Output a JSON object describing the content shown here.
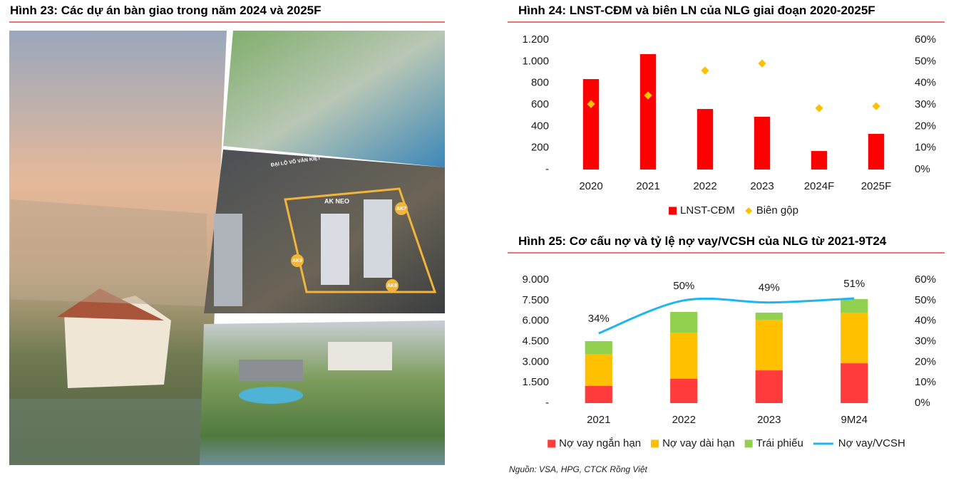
{
  "figure_23": {
    "title": "Hình 23: Các dự án bàn giao trong năm 2024 và 2025F",
    "image_labels": [
      "ĐẠI LỘ VÕ VĂN KIỆT",
      "AK NEO",
      "AK7",
      "AK9",
      "AK8"
    ]
  },
  "chart_data": [
    {
      "type": "bar",
      "title": "Hình 24: LNST-CĐM và biên LN của NLG giai đoạn 2020-2025F",
      "categories": [
        "2020",
        "2021",
        "2022",
        "2023",
        "2024F",
        "2025F"
      ],
      "series": [
        {
          "name": "LNST-CĐM",
          "color": "#ff0000",
          "type": "bar",
          "values": [
            837,
            1068,
            560,
            488,
            171,
            330
          ]
        },
        {
          "name": "Biên gộp",
          "color": "#ffc000",
          "type": "scatter",
          "axis": "y2",
          "values": [
            30.3,
            34.3,
            45.8,
            49.1,
            28.4,
            29.3
          ]
        }
      ],
      "ylim": [
        0,
        1200
      ],
      "yticks": [
        {
          "value": 0,
          "label": "-"
        },
        200,
        400,
        600,
        800,
        {
          "value": 1000,
          "label": "1.000"
        },
        {
          "value": 1200,
          "label": "1.200"
        }
      ],
      "y2lim": [
        0,
        60
      ],
      "y2ticks": [
        {
          "value": 0,
          "label": "0%"
        },
        {
          "value": 10,
          "label": "10%"
        },
        {
          "value": 20,
          "label": "20%"
        },
        {
          "value": 30,
          "label": "30%"
        },
        {
          "value": 40,
          "label": "40%"
        },
        {
          "value": 50,
          "label": "50%"
        },
        {
          "value": 60,
          "label": "60%"
        }
      ],
      "grid": false
    },
    {
      "type": "stacked_bar",
      "title": "Hình 25: Cơ cấu nợ và tỷ lệ nợ vay/VCSH của NLG từ 2021-9T24",
      "categories": [
        "2021",
        "2022",
        "2023",
        "9M24"
      ],
      "series": [
        {
          "name": "Nợ vay ngắn hạn",
          "color": "#ff3b3b",
          "type": "bar",
          "values": [
            1250,
            1770,
            2390,
            2910
          ]
        },
        {
          "name": "Nợ vay dài hạn",
          "color": "#ffc000",
          "type": "bar",
          "values": [
            2340,
            3380,
            3700,
            3700
          ]
        },
        {
          "name": "Trái phiếu",
          "color": "#92d050",
          "type": "bar",
          "values": [
            935,
            1510,
            520,
            990
          ]
        },
        {
          "name": "Nợ vay/VCSH",
          "color": "#1fb5ef",
          "type": "line",
          "axis": "y2",
          "values": [
            34,
            50,
            49,
            51
          ],
          "value_labels": [
            "34%",
            "50%",
            "49%",
            "51%"
          ]
        }
      ],
      "ylim": [
        0,
        9000
      ],
      "yticks": [
        {
          "value": 0,
          "label": "-"
        },
        {
          "value": 1500,
          "label": "1.500"
        },
        {
          "value": 3000,
          "label": "3.000"
        },
        {
          "value": 4500,
          "label": "4.500"
        },
        {
          "value": 6000,
          "label": "6.000"
        },
        {
          "value": 7500,
          "label": "7.500"
        },
        {
          "value": 9000,
          "label": "9.000"
        }
      ],
      "y2lim": [
        0,
        60
      ],
      "y2ticks": [
        {
          "value": 0,
          "label": "0%"
        },
        {
          "value": 10,
          "label": "10%"
        },
        {
          "value": 20,
          "label": "20%"
        },
        {
          "value": 30,
          "label": "30%"
        },
        {
          "value": 40,
          "label": "40%"
        },
        {
          "value": 50,
          "label": "50%"
        },
        {
          "value": 60,
          "label": "60%"
        }
      ],
      "grid": false
    }
  ],
  "source": "Nguồn: VSA, HPG, CTCK Rồng Việt"
}
